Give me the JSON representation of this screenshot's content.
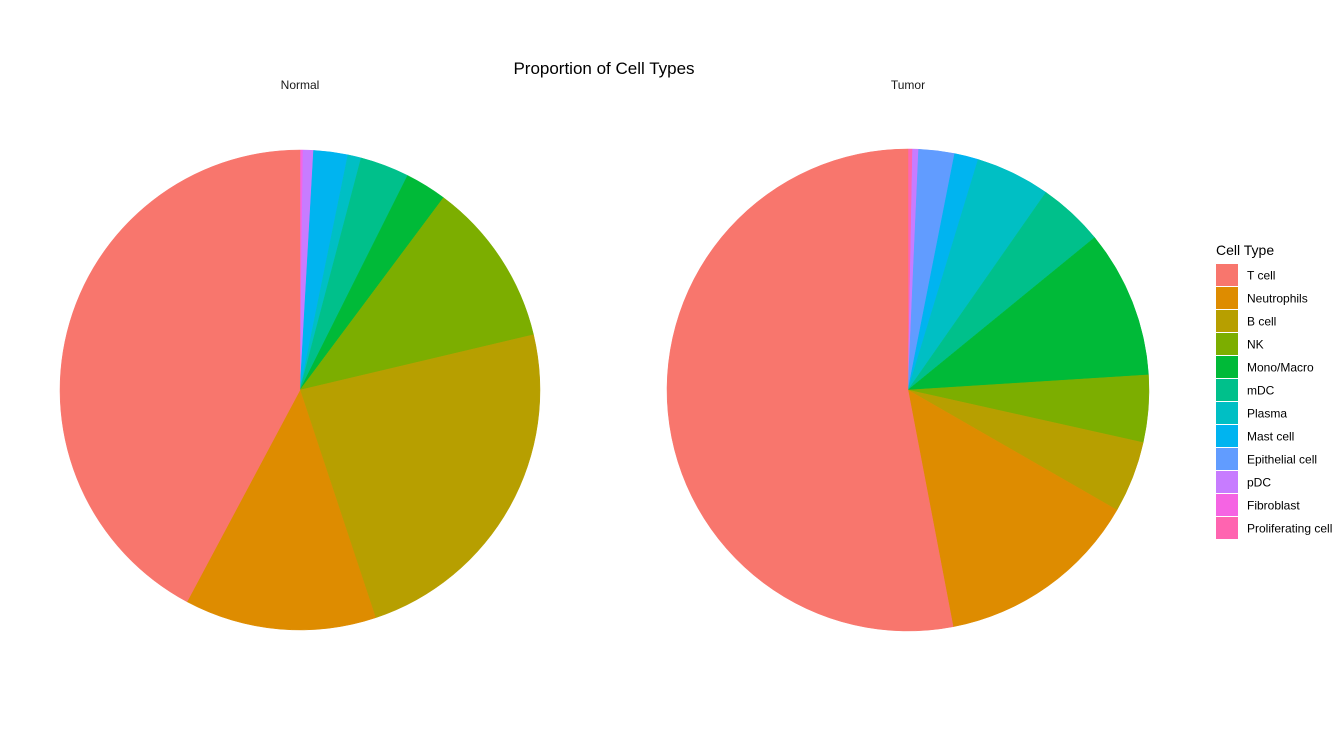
{
  "chart_data": {
    "type": "pie",
    "title": "Proportion of Cell Types",
    "legend": {
      "title": "Cell Type",
      "position": "right"
    },
    "categories": [
      "T cell",
      "Neutrophils",
      "B cell",
      "NK",
      "Mono/Macro",
      "mDC",
      "Plasma",
      "Mast cell",
      "Epithelial cell",
      "pDC",
      "Fibroblast",
      "Proliferating cell"
    ],
    "colors": [
      "#F8766D",
      "#DE8C00",
      "#B79F00",
      "#7CAE00",
      "#00BA38",
      "#00C08B",
      "#00BFC4",
      "#00B4F0",
      "#619CFF",
      "#C77CFF",
      "#F564E3",
      "#FF64B0"
    ],
    "panels": [
      {
        "name": "Normal",
        "values": [
          0.422,
          0.129,
          0.236,
          0.111,
          0.028,
          0.033,
          0.009,
          0.023,
          0.0,
          0.007,
          0.002,
          0.0
        ]
      },
      {
        "name": "Tumor",
        "values": [
          0.53,
          0.137,
          0.048,
          0.045,
          0.099,
          0.044,
          0.05,
          0.016,
          0.024,
          0.004,
          0.0,
          0.003
        ]
      }
    ]
  }
}
